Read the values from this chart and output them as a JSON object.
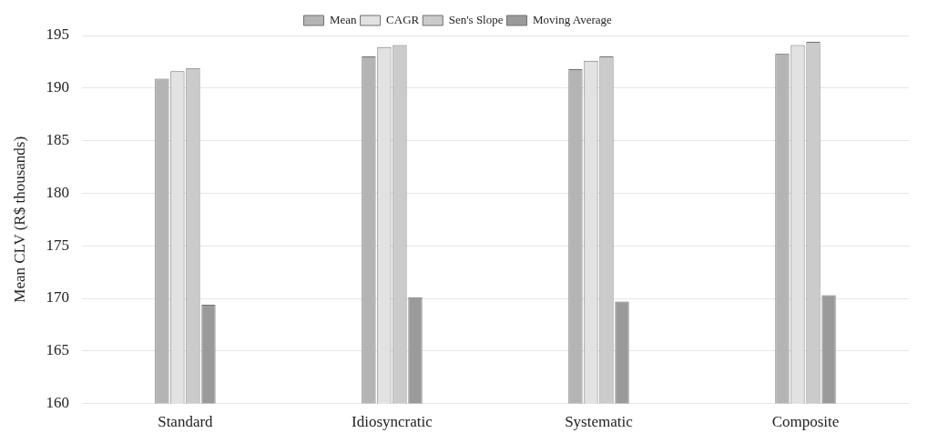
{
  "chart_data": {
    "type": "bar",
    "ylabel": "Mean CLV (R$ thousands)",
    "categories": [
      "Standard",
      "Idiosyncratic",
      "Systematic",
      "Composite"
    ],
    "series": [
      {
        "name": "Mean",
        "color": "#b4b4b4",
        "values": [
          190.9,
          193.0,
          191.8,
          193.3
        ]
      },
      {
        "name": "CAGR",
        "color": "#e2e2e2",
        "values": [
          191.6,
          193.9,
          192.6,
          194.1
        ]
      },
      {
        "name": "Sen's Slope",
        "color": "#cbcbcb",
        "values": [
          191.9,
          194.1,
          193.0,
          194.4
        ]
      },
      {
        "name": "Moving Average",
        "color": "#9a9a9a",
        "values": [
          169.4,
          170.1,
          169.7,
          170.3
        ]
      }
    ],
    "ylim": [
      160,
      195
    ],
    "yticks": [
      160,
      165,
      170,
      175,
      180,
      185,
      190,
      195
    ],
    "grid": "y",
    "legend": "top"
  }
}
